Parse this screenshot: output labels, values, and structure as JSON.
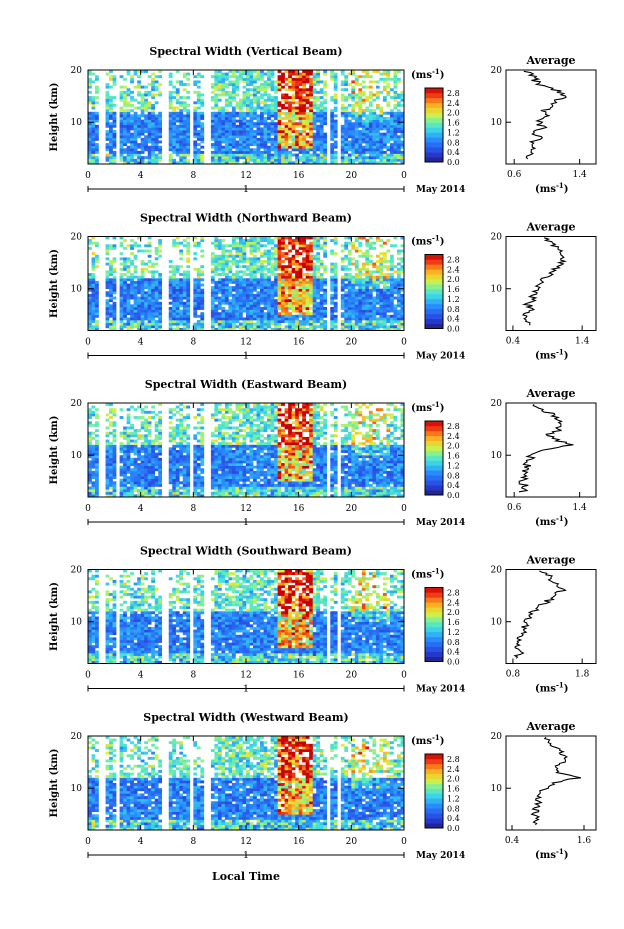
{
  "figure": {
    "xlabel": "Local Time",
    "date_label": "May 2014",
    "day_label": "1",
    "avg_title": "Average",
    "ylabel": "Height (km)",
    "colorbar_unit": "(ms",
    "colorbar_unit_exp": "-1",
    "colorbar_unit_close": ")",
    "avg_unit": "(ms",
    "avg_unit_exp": "-1",
    "avg_unit_close": ")"
  },
  "chart_data": [
    {
      "type": "heatmap",
      "title": "Spectral Width (Vertical Beam)",
      "x_ticks": [
        "0",
        "4",
        "8",
        "12",
        "16",
        "20",
        "0"
      ],
      "xlim": [
        0,
        24
      ],
      "y_ticks": [
        "20",
        "10"
      ],
      "ylim": [
        2,
        20
      ],
      "colorbar": {
        "ticks": [
          "0.0",
          "0.4",
          "0.8",
          "1.2",
          "1.6",
          "2.0",
          "2.4",
          "2.8"
        ],
        "range": [
          0,
          3.0
        ]
      },
      "gaps": [
        [
          0.9,
          1.2
        ],
        [
          2.1,
          2.5
        ],
        [
          5.6,
          6.0
        ],
        [
          7.7,
          8.1
        ],
        [
          8.9,
          9.2
        ],
        [
          18.1,
          18.4
        ],
        [
          19.0,
          19.3
        ]
      ],
      "avg": {
        "x_ticks": [
          "0.6",
          "1.4"
        ],
        "xlim": [
          0.5,
          1.6
        ],
        "profile": [
          [
            3,
            0.75
          ],
          [
            4,
            0.8
          ],
          [
            5,
            0.85
          ],
          [
            6,
            0.8
          ],
          [
            7,
            0.9
          ],
          [
            8,
            0.85
          ],
          [
            9,
            0.95
          ],
          [
            10,
            0.9
          ],
          [
            11,
            1.0
          ],
          [
            12,
            0.95
          ],
          [
            13,
            1.05
          ],
          [
            14,
            1.1
          ],
          [
            15,
            1.2
          ],
          [
            16,
            1.15
          ],
          [
            17,
            0.95
          ],
          [
            18,
            0.85
          ],
          [
            19,
            0.8
          ],
          [
            20,
            0.75
          ]
        ]
      }
    },
    {
      "type": "heatmap",
      "title": "Spectral Width (Northward Beam)",
      "x_ticks": [
        "0",
        "4",
        "8",
        "12",
        "16",
        "20",
        "0"
      ],
      "xlim": [
        0,
        24
      ],
      "y_ticks": [
        "20",
        "10"
      ],
      "ylim": [
        2,
        20
      ],
      "colorbar": {
        "ticks": [
          "0.0",
          "0.4",
          "0.8",
          "1.2",
          "1.6",
          "2.0",
          "2.4",
          "2.8"
        ],
        "range": [
          0,
          3.0
        ]
      },
      "gaps": [
        [
          0.9,
          1.2
        ],
        [
          2.1,
          2.5
        ],
        [
          5.6,
          6.0
        ],
        [
          7.7,
          8.1
        ],
        [
          8.9,
          9.2
        ],
        [
          18.1,
          18.4
        ],
        [
          19.0,
          19.3
        ]
      ],
      "avg": {
        "x_ticks": [
          "0.4",
          "1.4"
        ],
        "xlim": [
          0.3,
          1.6
        ],
        "profile": [
          [
            3,
            0.6
          ],
          [
            4,
            0.62
          ],
          [
            5,
            0.6
          ],
          [
            6,
            0.65
          ],
          [
            7,
            0.62
          ],
          [
            8,
            0.68
          ],
          [
            9,
            0.7
          ],
          [
            10,
            0.72
          ],
          [
            11,
            0.78
          ],
          [
            12,
            0.85
          ],
          [
            13,
            0.95
          ],
          [
            14,
            1.05
          ],
          [
            15,
            1.1
          ],
          [
            16,
            1.15
          ],
          [
            17,
            1.1
          ],
          [
            18,
            1.0
          ],
          [
            19,
            0.95
          ],
          [
            20,
            0.85
          ]
        ]
      }
    },
    {
      "type": "heatmap",
      "title": "Spectral Width (Eastward Beam)",
      "x_ticks": [
        "0",
        "4",
        "8",
        "12",
        "16",
        "20",
        "0"
      ],
      "xlim": [
        0,
        24
      ],
      "y_ticks": [
        "20",
        "10"
      ],
      "ylim": [
        2,
        20
      ],
      "colorbar": {
        "ticks": [
          "0.0",
          "0.4",
          "0.8",
          "1.2",
          "1.6",
          "2.0",
          "2.4",
          "2.8"
        ],
        "range": [
          0,
          3.0
        ]
      },
      "gaps": [
        [
          0.9,
          1.2
        ],
        [
          2.1,
          2.5
        ],
        [
          5.6,
          6.0
        ],
        [
          7.7,
          8.1
        ],
        [
          8.9,
          9.2
        ],
        [
          18.1,
          18.4
        ],
        [
          19.0,
          19.3
        ]
      ],
      "avg": {
        "x_ticks": [
          "0.6",
          "1.4"
        ],
        "xlim": [
          0.5,
          1.6
        ],
        "profile": [
          [
            3,
            0.7
          ],
          [
            4,
            0.72
          ],
          [
            5,
            0.7
          ],
          [
            6,
            0.75
          ],
          [
            7,
            0.72
          ],
          [
            8,
            0.75
          ],
          [
            9,
            0.78
          ],
          [
            10,
            0.82
          ],
          [
            11,
            1.0
          ],
          [
            12,
            1.3
          ],
          [
            13,
            1.1
          ],
          [
            14,
            1.05
          ],
          [
            15,
            1.15
          ],
          [
            16,
            1.2
          ],
          [
            17,
            1.1
          ],
          [
            18,
            1.05
          ],
          [
            19,
            0.9
          ],
          [
            20,
            0.8
          ]
        ]
      }
    },
    {
      "type": "heatmap",
      "title": "Spectral Width (Southward Beam)",
      "x_ticks": [
        "0",
        "4",
        "8",
        "12",
        "16",
        "20",
        "0"
      ],
      "xlim": [
        0,
        24
      ],
      "y_ticks": [
        "20",
        "10"
      ],
      "ylim": [
        2,
        20
      ],
      "colorbar": {
        "ticks": [
          "0.0",
          "0.4",
          "0.8",
          "1.2",
          "1.6",
          "2.0",
          "2.4",
          "2.8"
        ],
        "range": [
          0,
          3.0
        ]
      },
      "gaps": [
        [
          0.9,
          1.2
        ],
        [
          2.1,
          2.5
        ],
        [
          5.6,
          6.0
        ],
        [
          7.7,
          8.1
        ],
        [
          8.9,
          9.2
        ],
        [
          18.1,
          18.4
        ],
        [
          19.0,
          19.3
        ]
      ],
      "avg": {
        "x_ticks": [
          "0.8",
          "1.8"
        ],
        "xlim": [
          0.7,
          2.0
        ],
        "profile": [
          [
            3,
            0.85
          ],
          [
            4,
            0.9
          ],
          [
            5,
            0.85
          ],
          [
            6,
            0.9
          ],
          [
            7,
            0.92
          ],
          [
            8,
            0.95
          ],
          [
            9,
            0.98
          ],
          [
            10,
            1.0
          ],
          [
            11,
            1.05
          ],
          [
            12,
            1.1
          ],
          [
            13,
            1.2
          ],
          [
            14,
            1.3
          ],
          [
            15,
            1.4
          ],
          [
            16,
            1.5
          ],
          [
            17,
            1.45
          ],
          [
            18,
            1.35
          ],
          [
            19,
            1.3
          ],
          [
            20,
            1.2
          ]
        ]
      }
    },
    {
      "type": "heatmap",
      "title": "Spectral Width (Westward Beam)",
      "x_ticks": [
        "0",
        "4",
        "8",
        "12",
        "16",
        "20",
        "0"
      ],
      "xlim": [
        0,
        24
      ],
      "y_ticks": [
        "20",
        "10"
      ],
      "ylim": [
        2,
        20
      ],
      "colorbar": {
        "ticks": [
          "0.0",
          "0.4",
          "0.8",
          "1.2",
          "1.6",
          "2.0",
          "2.4",
          "2.8"
        ],
        "range": [
          0,
          3.0
        ]
      },
      "gaps": [
        [
          0.9,
          1.2
        ],
        [
          2.1,
          2.5
        ],
        [
          5.6,
          6.0
        ],
        [
          7.7,
          8.1
        ],
        [
          8.9,
          9.2
        ],
        [
          18.1,
          18.4
        ],
        [
          19.0,
          19.3
        ]
      ],
      "avg": {
        "x_ticks": [
          "0.4",
          "1.6"
        ],
        "xlim": [
          0.3,
          1.8
        ],
        "profile": [
          [
            3,
            0.75
          ],
          [
            4,
            0.8
          ],
          [
            5,
            0.78
          ],
          [
            6,
            0.8
          ],
          [
            7,
            0.85
          ],
          [
            8,
            0.82
          ],
          [
            9,
            0.88
          ],
          [
            10,
            0.95
          ],
          [
            11,
            1.1
          ],
          [
            12,
            1.5
          ],
          [
            13,
            1.2
          ],
          [
            14,
            1.15
          ],
          [
            15,
            1.25
          ],
          [
            16,
            1.3
          ],
          [
            17,
            1.2
          ],
          [
            18,
            1.1
          ],
          [
            19,
            1.0
          ],
          [
            20,
            0.9
          ]
        ]
      }
    }
  ]
}
